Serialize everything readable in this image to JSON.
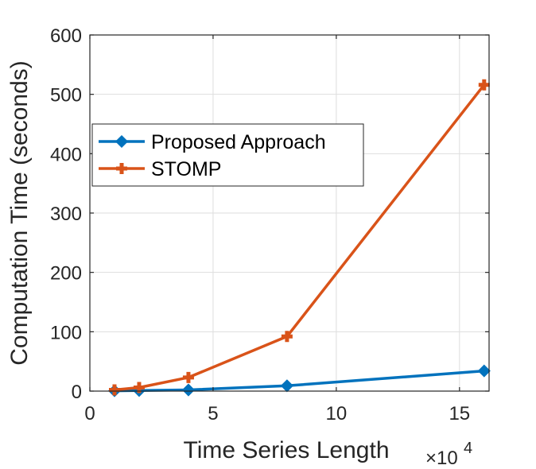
{
  "chart_data": {
    "type": "line",
    "xlabel": "Time Series Length",
    "ylabel": "Computation Time (seconds)",
    "x_exponent_label": "×10",
    "x_exponent_power": "4",
    "xlim": [
      0,
      16.2
    ],
    "ylim": [
      0,
      600
    ],
    "x_ticks": [
      0,
      5,
      10,
      15
    ],
    "y_ticks": [
      0,
      100,
      200,
      300,
      400,
      500,
      600
    ],
    "grid": true,
    "legend_position": "upper-left",
    "x": [
      1,
      2,
      4,
      8,
      16
    ],
    "series": [
      {
        "name": "Proposed Approach",
        "color": "#0072BD",
        "marker": "diamond",
        "values": [
          0.5,
          1.0,
          2.0,
          9.0,
          34.0
        ]
      },
      {
        "name": "STOMP",
        "color": "#D95319",
        "marker": "plus",
        "values": [
          2.0,
          6.0,
          23.0,
          92.0,
          516.0
        ]
      }
    ]
  }
}
